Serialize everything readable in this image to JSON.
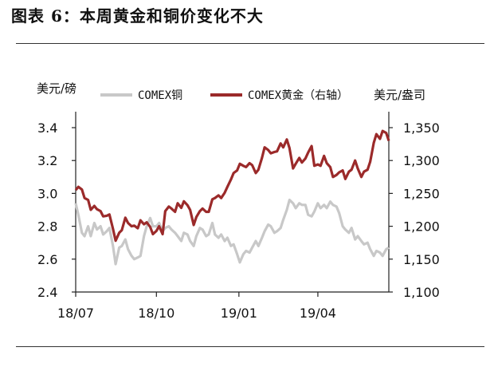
{
  "figure_title": "图表 6：本周黄金和铜价变化不大",
  "chart_data": {
    "type": "line",
    "left_axis_unit": "美元/磅",
    "right_axis_unit": "美元/盎司",
    "x_tick_labels": [
      "18/07",
      "18/10",
      "19/01",
      "19/04"
    ],
    "left_ylim": [
      2.4,
      3.4
    ],
    "left_ticks": [
      "2.4",
      "2.6",
      "2.8",
      "3.0",
      "3.2",
      "3.4"
    ],
    "right_ylim": [
      1100,
      1350
    ],
    "right_ticks": [
      "1,100",
      "1,150",
      "1,200",
      "1,250",
      "1,300",
      "1,350"
    ],
    "grid": false,
    "legend_position": "top",
    "series": [
      {
        "name": "COMEX铜",
        "axis": "left",
        "color": "#c8c8c8",
        "points": [
          [
            "2018-07-02",
            2.94
          ],
          [
            "2018-07-05",
            2.87
          ],
          [
            "2018-07-09",
            2.76
          ],
          [
            "2018-07-12",
            2.74
          ],
          [
            "2018-07-16",
            2.8
          ],
          [
            "2018-07-19",
            2.74
          ],
          [
            "2018-07-23",
            2.82
          ],
          [
            "2018-07-26",
            2.78
          ],
          [
            "2018-07-30",
            2.8
          ],
          [
            "2018-08-02",
            2.75
          ],
          [
            "2018-08-06",
            2.77
          ],
          [
            "2018-08-09",
            2.79
          ],
          [
            "2018-08-13",
            2.68
          ],
          [
            "2018-08-16",
            2.57
          ],
          [
            "2018-08-20",
            2.67
          ],
          [
            "2018-08-23",
            2.68
          ],
          [
            "2018-08-27",
            2.72
          ],
          [
            "2018-08-30",
            2.66
          ],
          [
            "2018-09-03",
            2.62
          ],
          [
            "2018-09-06",
            2.6
          ],
          [
            "2018-09-10",
            2.61
          ],
          [
            "2018-09-13",
            2.62
          ],
          [
            "2018-09-17",
            2.74
          ],
          [
            "2018-09-20",
            2.8
          ],
          [
            "2018-09-24",
            2.85
          ],
          [
            "2018-09-27",
            2.8
          ],
          [
            "2018-10-01",
            2.8
          ],
          [
            "2018-10-04",
            2.82
          ],
          [
            "2018-10-08",
            2.77
          ],
          [
            "2018-10-11",
            2.79
          ],
          [
            "2018-10-15",
            2.8
          ],
          [
            "2018-10-18",
            2.78
          ],
          [
            "2018-10-22",
            2.76
          ],
          [
            "2018-10-25",
            2.74
          ],
          [
            "2018-10-29",
            2.71
          ],
          [
            "2018-11-01",
            2.76
          ],
          [
            "2018-11-05",
            2.75
          ],
          [
            "2018-11-08",
            2.71
          ],
          [
            "2018-11-12",
            2.68
          ],
          [
            "2018-11-15",
            2.74
          ],
          [
            "2018-11-19",
            2.79
          ],
          [
            "2018-11-22",
            2.78
          ],
          [
            "2018-11-26",
            2.74
          ],
          [
            "2018-11-29",
            2.75
          ],
          [
            "2018-12-03",
            2.82
          ],
          [
            "2018-12-06",
            2.75
          ],
          [
            "2018-12-10",
            2.73
          ],
          [
            "2018-12-13",
            2.75
          ],
          [
            "2018-12-17",
            2.71
          ],
          [
            "2018-12-20",
            2.73
          ],
          [
            "2018-12-24",
            2.68
          ],
          [
            "2018-12-27",
            2.69
          ],
          [
            "2018-12-31",
            2.63
          ],
          [
            "2019-01-03",
            2.58
          ],
          [
            "2019-01-07",
            2.63
          ],
          [
            "2019-01-10",
            2.65
          ],
          [
            "2019-01-14",
            2.64
          ],
          [
            "2019-01-17",
            2.67
          ],
          [
            "2019-01-21",
            2.71
          ],
          [
            "2019-01-24",
            2.68
          ],
          [
            "2019-01-28",
            2.73
          ],
          [
            "2019-01-31",
            2.77
          ],
          [
            "2019-02-04",
            2.81
          ],
          [
            "2019-02-07",
            2.8
          ],
          [
            "2019-02-11",
            2.76
          ],
          [
            "2019-02-14",
            2.77
          ],
          [
            "2019-02-18",
            2.79
          ],
          [
            "2019-02-21",
            2.84
          ],
          [
            "2019-02-25",
            2.9
          ],
          [
            "2019-02-28",
            2.96
          ],
          [
            "2019-03-04",
            2.94
          ],
          [
            "2019-03-07",
            2.91
          ],
          [
            "2019-03-11",
            2.94
          ],
          [
            "2019-03-14",
            2.93
          ],
          [
            "2019-03-18",
            2.93
          ],
          [
            "2019-03-21",
            2.87
          ],
          [
            "2019-03-25",
            2.86
          ],
          [
            "2019-03-28",
            2.89
          ],
          [
            "2019-04-01",
            2.94
          ],
          [
            "2019-04-04",
            2.91
          ],
          [
            "2019-04-08",
            2.93
          ],
          [
            "2019-04-11",
            2.91
          ],
          [
            "2019-04-15",
            2.95
          ],
          [
            "2019-04-18",
            2.93
          ],
          [
            "2019-04-22",
            2.92
          ],
          [
            "2019-04-25",
            2.88
          ],
          [
            "2019-04-29",
            2.8
          ],
          [
            "2019-05-02",
            2.78
          ],
          [
            "2019-05-06",
            2.76
          ],
          [
            "2019-05-09",
            2.79
          ],
          [
            "2019-05-13",
            2.72
          ],
          [
            "2019-05-16",
            2.74
          ],
          [
            "2019-05-20",
            2.71
          ],
          [
            "2019-05-23",
            2.69
          ],
          [
            "2019-05-27",
            2.7
          ],
          [
            "2019-05-30",
            2.66
          ],
          [
            "2019-06-03",
            2.62
          ],
          [
            "2019-06-06",
            2.65
          ],
          [
            "2019-06-10",
            2.64
          ],
          [
            "2019-06-13",
            2.62
          ],
          [
            "2019-06-17",
            2.66
          ],
          [
            "2019-06-20",
            2.67
          ]
        ]
      },
      {
        "name": "COMEX黄金（右轴）",
        "axis": "right",
        "color": "#9b2a2a",
        "points": [
          [
            "2018-07-02",
            1255
          ],
          [
            "2018-07-05",
            1260
          ],
          [
            "2018-07-09",
            1256
          ],
          [
            "2018-07-12",
            1243
          ],
          [
            "2018-07-16",
            1240
          ],
          [
            "2018-07-19",
            1225
          ],
          [
            "2018-07-23",
            1231
          ],
          [
            "2018-07-26",
            1226
          ],
          [
            "2018-07-30",
            1223
          ],
          [
            "2018-08-02",
            1215
          ],
          [
            "2018-08-06",
            1216
          ],
          [
            "2018-08-09",
            1218
          ],
          [
            "2018-08-13",
            1196
          ],
          [
            "2018-08-16",
            1178
          ],
          [
            "2018-08-20",
            1190
          ],
          [
            "2018-08-23",
            1194
          ],
          [
            "2018-08-27",
            1213
          ],
          [
            "2018-08-30",
            1205
          ],
          [
            "2018-09-03",
            1200
          ],
          [
            "2018-09-06",
            1201
          ],
          [
            "2018-09-10",
            1197
          ],
          [
            "2018-09-13",
            1209
          ],
          [
            "2018-09-17",
            1203
          ],
          [
            "2018-09-20",
            1206
          ],
          [
            "2018-09-24",
            1199
          ],
          [
            "2018-09-27",
            1188
          ],
          [
            "2018-10-01",
            1193
          ],
          [
            "2018-10-04",
            1200
          ],
          [
            "2018-10-08",
            1188
          ],
          [
            "2018-10-11",
            1223
          ],
          [
            "2018-10-15",
            1230
          ],
          [
            "2018-10-18",
            1227
          ],
          [
            "2018-10-22",
            1222
          ],
          [
            "2018-10-25",
            1235
          ],
          [
            "2018-10-29",
            1228
          ],
          [
            "2018-11-01",
            1238
          ],
          [
            "2018-11-05",
            1232
          ],
          [
            "2018-11-08",
            1225
          ],
          [
            "2018-11-12",
            1202
          ],
          [
            "2018-11-15",
            1214
          ],
          [
            "2018-11-19",
            1223
          ],
          [
            "2018-11-22",
            1227
          ],
          [
            "2018-11-26",
            1222
          ],
          [
            "2018-11-29",
            1222
          ],
          [
            "2018-12-03",
            1241
          ],
          [
            "2018-12-06",
            1243
          ],
          [
            "2018-12-10",
            1247
          ],
          [
            "2018-12-13",
            1243
          ],
          [
            "2018-12-17",
            1251
          ],
          [
            "2018-12-20",
            1260
          ],
          [
            "2018-12-24",
            1271
          ],
          [
            "2018-12-27",
            1281
          ],
          [
            "2018-12-31",
            1285
          ],
          [
            "2019-01-03",
            1295
          ],
          [
            "2019-01-07",
            1292
          ],
          [
            "2019-01-10",
            1290
          ],
          [
            "2019-01-14",
            1296
          ],
          [
            "2019-01-17",
            1293
          ],
          [
            "2019-01-21",
            1281
          ],
          [
            "2019-01-24",
            1286
          ],
          [
            "2019-01-28",
            1304
          ],
          [
            "2019-01-31",
            1320
          ],
          [
            "2019-02-04",
            1316
          ],
          [
            "2019-02-07",
            1311
          ],
          [
            "2019-02-11",
            1313
          ],
          [
            "2019-02-14",
            1314
          ],
          [
            "2019-02-18",
            1326
          ],
          [
            "2019-02-21",
            1320
          ],
          [
            "2019-02-25",
            1332
          ],
          [
            "2019-02-28",
            1319
          ],
          [
            "2019-03-04",
            1288
          ],
          [
            "2019-03-07",
            1295
          ],
          [
            "2019-03-11",
            1304
          ],
          [
            "2019-03-14",
            1297
          ],
          [
            "2019-03-18",
            1303
          ],
          [
            "2019-03-21",
            1312
          ],
          [
            "2019-03-25",
            1322
          ],
          [
            "2019-03-28",
            1292
          ],
          [
            "2019-04-01",
            1294
          ],
          [
            "2019-04-04",
            1292
          ],
          [
            "2019-04-08",
            1307
          ],
          [
            "2019-04-11",
            1296
          ],
          [
            "2019-04-15",
            1290
          ],
          [
            "2019-04-18",
            1275
          ],
          [
            "2019-04-22",
            1278
          ],
          [
            "2019-04-25",
            1282
          ],
          [
            "2019-04-29",
            1285
          ],
          [
            "2019-05-02",
            1272
          ],
          [
            "2019-05-06",
            1283
          ],
          [
            "2019-05-09",
            1286
          ],
          [
            "2019-05-13",
            1300
          ],
          [
            "2019-05-16",
            1288
          ],
          [
            "2019-05-20",
            1275
          ],
          [
            "2019-05-23",
            1283
          ],
          [
            "2019-05-27",
            1286
          ],
          [
            "2019-05-30",
            1298
          ],
          [
            "2019-06-03",
            1327
          ],
          [
            "2019-06-06",
            1340
          ],
          [
            "2019-06-10",
            1333
          ],
          [
            "2019-06-13",
            1345
          ],
          [
            "2019-06-17",
            1342
          ],
          [
            "2019-06-20",
            1330
          ]
        ]
      }
    ]
  }
}
